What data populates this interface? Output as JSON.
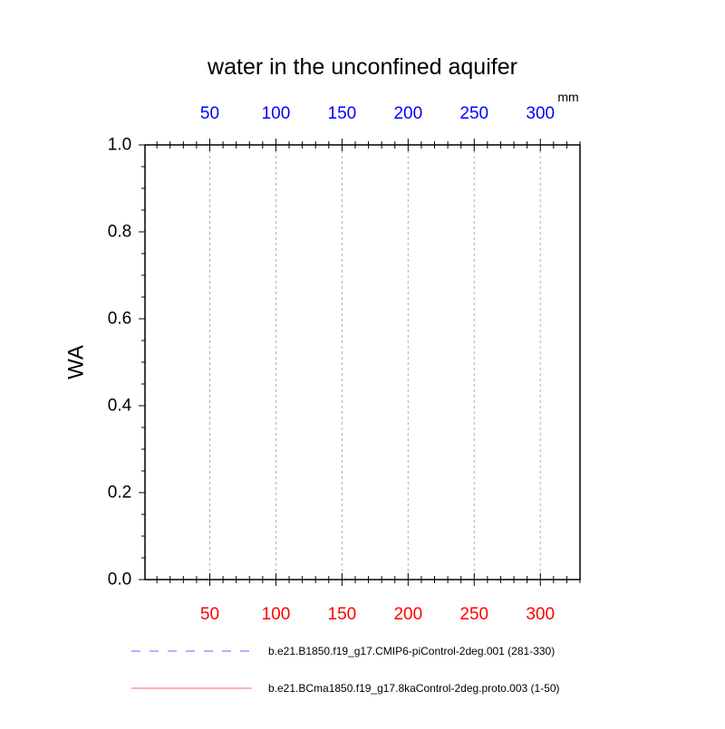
{
  "chart_data": {
    "type": "line",
    "title": "water in the unconfined aquifer",
    "ylabel": "WA",
    "top_axis_unit": "mm",
    "ylim": [
      0.0,
      1.0
    ],
    "xlim": [
      1,
      330
    ],
    "y_ticks": [
      0.0,
      0.2,
      0.4,
      0.6,
      0.8,
      1.0
    ],
    "y_tick_labels": [
      "0.0",
      "0.2",
      "0.4",
      "0.6",
      "0.8",
      "1.0"
    ],
    "x_ticks": [
      50,
      100,
      150,
      200,
      250,
      300
    ],
    "x_tick_labels_bottom": [
      "50",
      "100",
      "150",
      "200",
      "250",
      "300"
    ],
    "x_tick_labels_top": [
      "50",
      "100",
      "150",
      "200",
      "250",
      "300"
    ],
    "bottom_axis_color": "#ff0000",
    "top_axis_color": "#0000ff",
    "vertical_grid": true,
    "series": [
      {
        "name": "b.e21.B1850.f19_g17.CMIP6-piControl-2deg.001 (281-330)",
        "color": "#6666ff",
        "dash": "dashed",
        "axis": "top",
        "x": [
          1,
          50
        ],
        "y": [
          0.0,
          0.0
        ]
      },
      {
        "name": "b.e21.BCma1850.f19_g17.8kaControl-2deg.proto.003 (1-50)",
        "color": "#ff6666",
        "dash": "solid",
        "axis": "bottom",
        "x": [
          1,
          50
        ],
        "y": [
          0.0,
          0.0
        ]
      }
    ]
  }
}
